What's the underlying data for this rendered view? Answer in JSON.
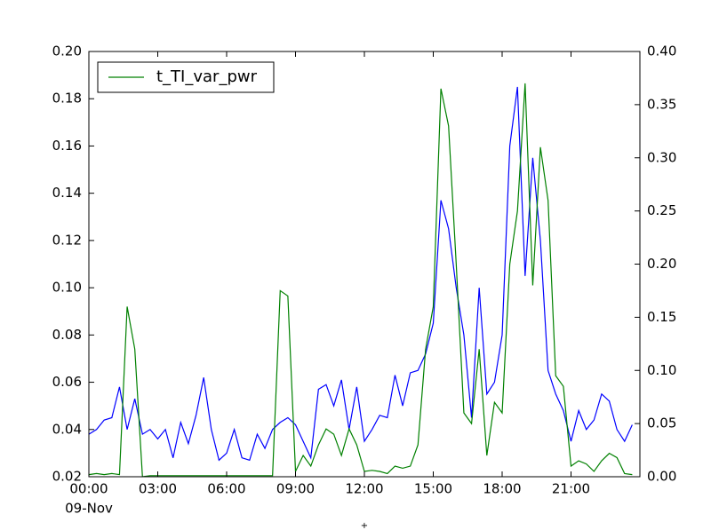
{
  "chart_data": {
    "type": "line",
    "x": [
      0,
      20,
      40,
      60,
      80,
      100,
      120,
      140,
      160,
      180,
      200,
      220,
      240,
      260,
      280,
      300,
      320,
      340,
      360,
      380,
      400,
      420,
      440,
      460,
      480,
      500,
      520,
      540,
      560,
      580,
      600,
      620,
      640,
      660,
      680,
      700,
      720,
      740,
      760,
      780,
      800,
      820,
      840,
      860,
      880,
      900,
      920,
      940,
      960,
      980,
      1000,
      1020,
      1040,
      1060,
      1080,
      1100,
      1120,
      1140,
      1160,
      1180,
      1200,
      1220,
      1240,
      1260,
      1280,
      1300,
      1320,
      1340,
      1360,
      1380,
      1400,
      1420
    ],
    "xlim": [
      0,
      1440
    ],
    "xticks": [
      {
        "value": 0,
        "label": "00:00"
      },
      {
        "value": 180,
        "label": "03:00"
      },
      {
        "value": 360,
        "label": "06:00"
      },
      {
        "value": 540,
        "label": "09:00"
      },
      {
        "value": 720,
        "label": "12:00"
      },
      {
        "value": 900,
        "label": "15:00"
      },
      {
        "value": 1080,
        "label": "18:00"
      },
      {
        "value": 1260,
        "label": "21:00"
      }
    ],
    "x_date_label": "09-Nov",
    "x_offset_text": "+",
    "ylim": [
      0.02,
      0.2
    ],
    "yticks": [
      {
        "value": 0.02,
        "label": "0.02"
      },
      {
        "value": 0.04,
        "label": "0.04"
      },
      {
        "value": 0.06,
        "label": "0.06"
      },
      {
        "value": 0.08,
        "label": "0.08"
      },
      {
        "value": 0.1,
        "label": "0.10"
      },
      {
        "value": 0.12,
        "label": "0.12"
      },
      {
        "value": 0.14,
        "label": "0.14"
      },
      {
        "value": 0.16,
        "label": "0.16"
      },
      {
        "value": 0.18,
        "label": "0.18"
      },
      {
        "value": 0.2,
        "label": "0.20"
      }
    ],
    "y2lim": [
      0,
      0.4
    ],
    "y2ticks": [
      {
        "value": 0,
        "label": "0.00"
      },
      {
        "value": 0.05,
        "label": "0.05"
      },
      {
        "value": 0.1,
        "label": "0.10"
      },
      {
        "value": 0.15,
        "label": "0.15"
      },
      {
        "value": 0.2,
        "label": "0.20"
      },
      {
        "value": 0.25,
        "label": "0.25"
      },
      {
        "value": 0.3,
        "label": "0.30"
      },
      {
        "value": 0.35,
        "label": "0.35"
      },
      {
        "value": 0.4,
        "label": "0.40"
      }
    ],
    "legend": "upper left",
    "series": [
      {
        "color": "#0000ff",
        "values": [
          0.038,
          0.04,
          0.044,
          0.045,
          0.058,
          0.04,
          0.053,
          0.038,
          0.04,
          0.036,
          0.04,
          0.028,
          0.043,
          0.034,
          0.046,
          0.062,
          0.04,
          0.027,
          0.03,
          0.04,
          0.028,
          0.027,
          0.038,
          0.032,
          0.04,
          0.043,
          0.045,
          0.042,
          0.035,
          0.028,
          0.057,
          0.059,
          0.05,
          0.061,
          0.04,
          0.058,
          0.035,
          0.04,
          0.046,
          0.045,
          0.063,
          0.05,
          0.064,
          0.065,
          0.072,
          0.085,
          0.137,
          0.125,
          0.1,
          0.08,
          0.045,
          0.1,
          0.055,
          0.06,
          0.08,
          0.16,
          0.185,
          0.105,
          0.155,
          0.12,
          0.065,
          0.055,
          0.048,
          0.035,
          0.048,
          0.04,
          0.044,
          0.055,
          0.052,
          0.04,
          0.035,
          0.042
        ]
      },
      {
        "name": "t_TI_var_pwr",
        "color": "#008000",
        "axis": "y2",
        "values": [
          0.002,
          0.003,
          0.002,
          0.003,
          0.002,
          0.16,
          0.12,
          0.0,
          0.001,
          0.001,
          0.001,
          0.001,
          0.001,
          0.001,
          0.001,
          0.001,
          0.001,
          0.001,
          0.001,
          0.001,
          0.001,
          0.001,
          0.001,
          0.001,
          0.001,
          0.175,
          0.17,
          0.005,
          0.02,
          0.01,
          0.03,
          0.045,
          0.04,
          0.02,
          0.045,
          0.03,
          0.005,
          0.006,
          0.005,
          0.003,
          0.01,
          0.008,
          0.01,
          0.03,
          0.12,
          0.16,
          0.365,
          0.33,
          0.2,
          0.06,
          0.05,
          0.12,
          0.02,
          0.07,
          0.06,
          0.2,
          0.25,
          0.37,
          0.18,
          0.31,
          0.26,
          0.095,
          0.085,
          0.01,
          0.015,
          0.012,
          0.005,
          0.015,
          0.022,
          0.018,
          0.003,
          0.002
        ]
      }
    ]
  }
}
